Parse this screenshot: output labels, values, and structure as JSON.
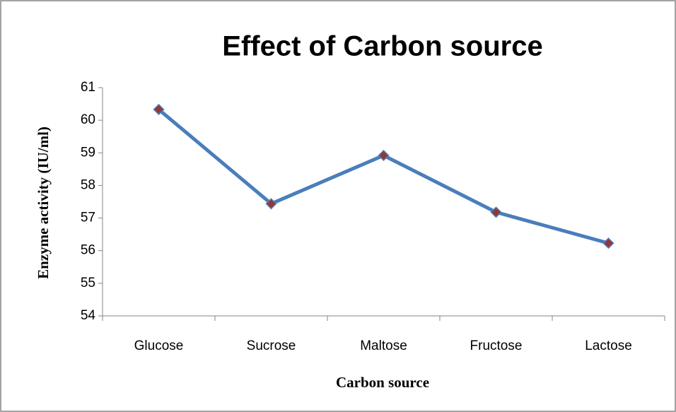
{
  "chart_data": {
    "type": "line",
    "title": "Effect of Carbon source",
    "x_label": "Carbon source",
    "y_label": "Enzyme activity (IU/ml)",
    "categories": [
      "Glucose",
      "Sucrose",
      "Maltose",
      "Fructose",
      "Lactose"
    ],
    "series": [
      {
        "name": "Enzyme activity",
        "color": "#4a7ebb",
        "marker_color": "#953735",
        "values": [
          60.33,
          57.44,
          58.92,
          57.18,
          56.23
        ]
      }
    ],
    "ylim": [
      54,
      61
    ],
    "yticks": [
      54,
      55,
      56,
      57,
      58,
      59,
      60,
      61
    ],
    "grid": false,
    "legend": false
  }
}
